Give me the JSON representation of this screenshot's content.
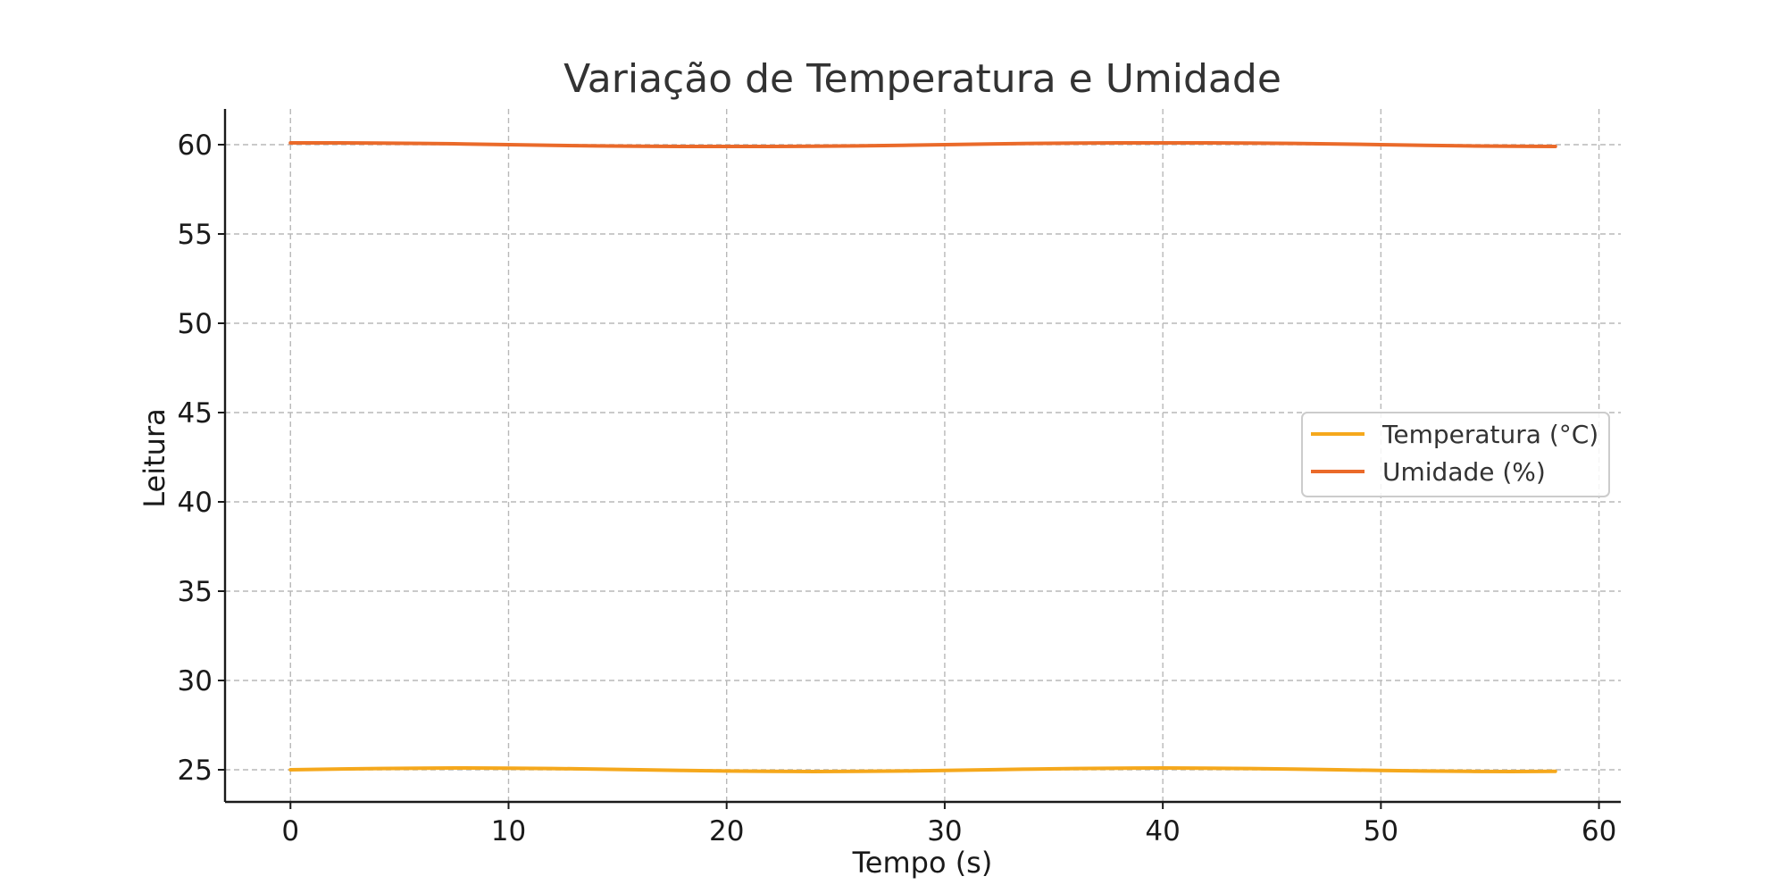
{
  "chart_data": {
    "type": "line",
    "title": "Variação de Temperatura e Umidade",
    "xlabel": "Tempo (s)",
    "ylabel": "Leitura",
    "xlim": [
      -3,
      61
    ],
    "ylim": [
      23.2,
      62
    ],
    "xticks": [
      0,
      10,
      20,
      30,
      40,
      50,
      60
    ],
    "yticks": [
      25,
      30,
      35,
      40,
      45,
      50,
      55,
      60
    ],
    "grid": true,
    "legend_position": "center-right",
    "x": [
      0,
      2,
      4,
      6,
      8,
      10,
      12,
      14,
      16,
      18,
      20,
      22,
      24,
      26,
      28,
      30,
      32,
      34,
      36,
      38,
      40,
      42,
      44,
      46,
      48,
      50,
      52,
      54,
      56,
      58
    ],
    "series": [
      {
        "name": "Temperatura (°C)",
        "color": "#f5a81c",
        "values": [
          25.0,
          25.04,
          25.07,
          25.09,
          25.1,
          25.09,
          25.07,
          25.04,
          25.0,
          24.96,
          24.93,
          24.91,
          24.9,
          24.91,
          24.93,
          24.96,
          25.0,
          25.04,
          25.07,
          25.09,
          25.1,
          25.09,
          25.07,
          25.04,
          25.0,
          24.96,
          24.93,
          24.91,
          24.9,
          24.91
        ]
      },
      {
        "name": "Umidade (%)",
        "color": "#ea6a2a",
        "values": [
          60.1,
          60.1,
          60.09,
          60.07,
          60.04,
          60.0,
          59.96,
          59.93,
          59.91,
          59.9,
          59.9,
          59.9,
          59.91,
          59.93,
          59.96,
          60.0,
          60.04,
          60.07,
          60.09,
          60.1,
          60.1,
          60.1,
          60.09,
          60.07,
          60.04,
          60.0,
          59.96,
          59.93,
          59.91,
          59.9
        ]
      }
    ]
  }
}
